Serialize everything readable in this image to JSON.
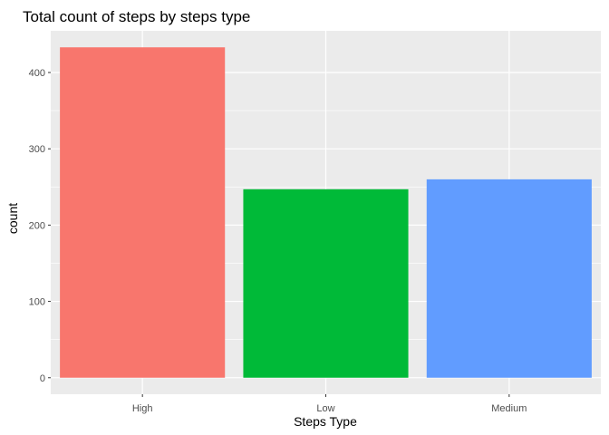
{
  "chart_data": {
    "type": "bar",
    "title": "Total count of steps by steps type",
    "xlabel": "Steps Type",
    "ylabel": "count",
    "categories": [
      "High",
      "Low",
      "Medium"
    ],
    "values": [
      433,
      247,
      260
    ],
    "ylim": [
      -21.65,
      454.65
    ],
    "yticks": [
      0,
      100,
      200,
      300,
      400
    ],
    "yticks_minor": [
      50,
      150,
      250,
      350
    ],
    "grid": true,
    "legend": "none",
    "colors": [
      "#F8766D",
      "#00BA38",
      "#619CFF"
    ],
    "panel_background": "#EBEBEB"
  }
}
